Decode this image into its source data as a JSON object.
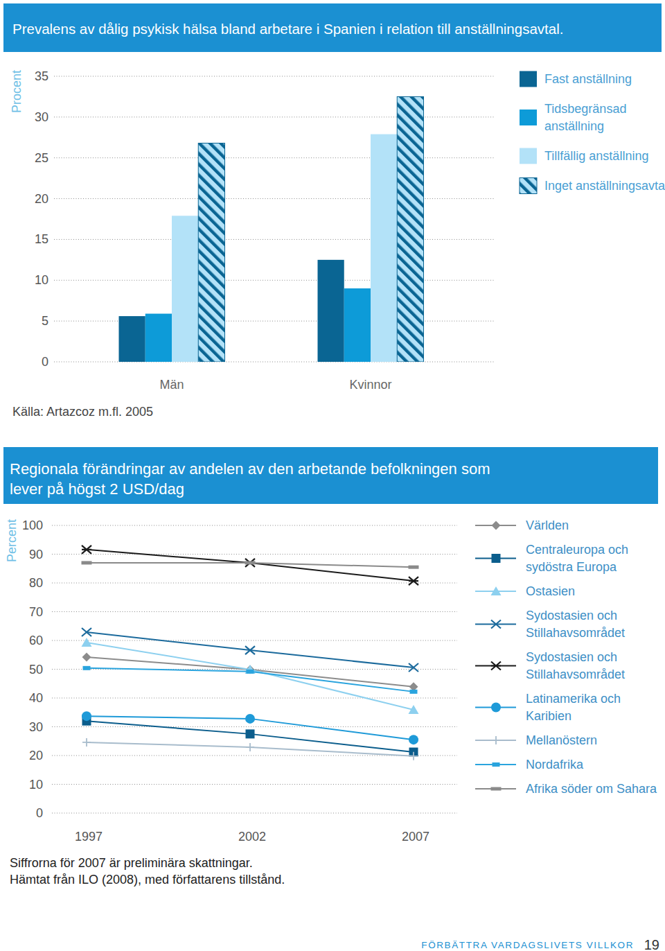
{
  "chart_data": [
    {
      "type": "bar",
      "title": "Prevalens av dålig psykisk hälsa bland arbetare i Spanien i relation till anställningsavtal.",
      "y_label": "Procent",
      "categories": [
        "Män",
        "Kvinnor"
      ],
      "series": [
        {
          "name": "Fast anställning",
          "color": "#0a6593",
          "values": [
            5.6,
            12.5
          ]
        },
        {
          "name": "Tidsbegränsad anställning",
          "color": "#0d9bd8",
          "values": [
            5.9,
            9.0
          ]
        },
        {
          "name": "Tillfällig anställning",
          "color": "#b3e2f8",
          "values": [
            17.9,
            27.9
          ]
        },
        {
          "name": "Inget anställningsavtal",
          "color": "#b3e2f8",
          "line_style": "hatched",
          "values": [
            26.8,
            32.5
          ]
        }
      ],
      "ylim": [
        0,
        35
      ],
      "yticks": [
        0,
        5,
        10,
        15,
        20,
        25,
        30,
        35
      ],
      "grid": true,
      "legend": "right",
      "notes": [
        "Källa: Artazcoz m.fl. 2005"
      ]
    },
    {
      "type": "line",
      "title": "Regionala förändringar av andelen av den arbetande befolkningen som lever på högst 2 USD/dag",
      "y_label": "Percent",
      "categories": [
        "1997",
        "2002",
        "2007"
      ],
      "series": [
        {
          "name": "Världen",
          "color": "#8c8c8c",
          "marker": "diamond",
          "values": [
            54.2,
            49.9,
            43.9
          ]
        },
        {
          "name": "Centraleuropa och sydöstra Europa",
          "color": "#0b5d8c",
          "marker": "square",
          "values": [
            32.0,
            27.5,
            21.2
          ]
        },
        {
          "name": "Ostasien",
          "color": "#8dd0ef",
          "marker": "triangle",
          "values": [
            59.3,
            49.9,
            35.9
          ]
        },
        {
          "name": "Sydostasien och Stillahavsområdet",
          "color": "#1b6a9c",
          "marker": "x",
          "values": [
            62.9,
            56.6,
            50.6
          ]
        },
        {
          "name": "Sydostasien och Stillahavsområdet",
          "color": "#1a1a1a",
          "marker": "asterisk",
          "values": [
            91.6,
            87.0,
            80.7
          ]
        },
        {
          "name": "Latinamerika och Karibien",
          "color": "#1e9ad8",
          "marker": "circle",
          "values": [
            33.7,
            32.8,
            25.5
          ]
        },
        {
          "name": "Mellanöstern",
          "color": "#a8bccc",
          "marker": "plus",
          "values": [
            24.6,
            22.9,
            19.8
          ]
        },
        {
          "name": "Nordafrika",
          "color": "#2aa4de",
          "marker": "rect",
          "values": [
            50.4,
            49.2,
            42.2
          ]
        },
        {
          "name": "Afrika söder om Sahara",
          "color": "#8a8a8a",
          "marker": "dash",
          "values": [
            87.0,
            87.0,
            85.5
          ]
        }
      ],
      "ylim": [
        0,
        100
      ],
      "yticks": [
        0,
        10,
        20,
        30,
        40,
        50,
        60,
        70,
        80,
        90,
        100
      ],
      "grid": true,
      "legend": "right",
      "notes": [
        "Siffrorna för 2007 är preliminära skattningar.",
        "Hämtat från ILO (2008), med författarens tillstånd."
      ]
    }
  ],
  "footer": {
    "text": "FÖRBÄTTRA VARDAGSLIVETS VILLKOR",
    "page": "19"
  }
}
